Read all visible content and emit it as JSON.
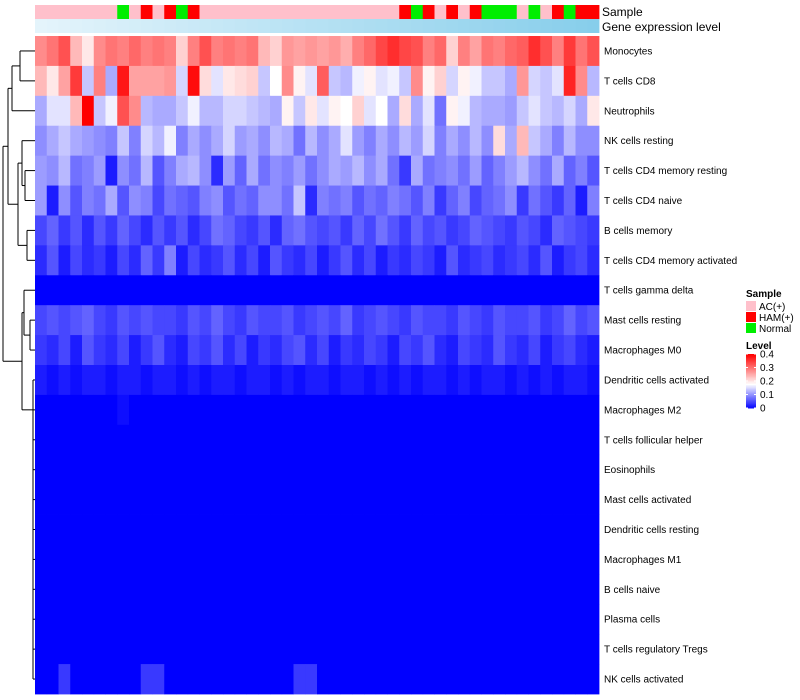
{
  "chart_data": {
    "type": "heatmap",
    "title": "",
    "annotation_tracks": [
      {
        "name": "Sample",
        "label": "Sample"
      },
      {
        "name": "Gene expression level",
        "label": "Gene expression level"
      }
    ],
    "sample_groups": [
      "AC",
      "AC",
      "AC",
      "AC",
      "AC",
      "AC",
      "AC",
      "N",
      "AC",
      "H",
      "AC",
      "H",
      "N",
      "H",
      "AC",
      "AC",
      "AC",
      "AC",
      "AC",
      "AC",
      "AC",
      "AC",
      "AC",
      "AC",
      "AC",
      "AC",
      "AC",
      "AC",
      "AC",
      "AC",
      "AC",
      "H",
      "N",
      "H",
      "AC",
      "H",
      "AC",
      "H",
      "N",
      "N",
      "N",
      "AC",
      "N",
      "AC",
      "H",
      "N",
      "H",
      "H"
    ],
    "sample_group_labels": {
      "AC": "AC(+)",
      "H": "HAM(+)",
      "N": "Normal"
    },
    "sample_group_colors": {
      "AC": "#ffc0cb",
      "H": "#ff0000",
      "N": "#00ee00"
    },
    "expression_track": {
      "low_color": "#e4f4fb",
      "high_color": "#87ceeb"
    },
    "rows": [
      "Monocytes",
      "T cells CD8",
      "Neutrophils",
      "NK cells resting",
      "T cells CD4 memory resting",
      "T cells CD4 naive",
      "B cells memory",
      "T cells CD4 memory activated",
      "T cells gamma delta",
      "Mast cells resting",
      "Macrophages M0",
      "Dendritic cells activated",
      "Macrophages M2",
      "T cells follicular helper",
      "Eosinophils",
      "Mast cells activated",
      "Dendritic cells resting",
      "Macrophages M1",
      "B cells naive",
      "Plasma cells",
      "T cells regulatory  Tregs",
      "NK cells activated"
    ],
    "values": [
      [
        0.28,
        0.3,
        0.33,
        0.24,
        0.2,
        0.28,
        0.3,
        0.29,
        0.31,
        0.29,
        0.3,
        0.29,
        0.22,
        0.29,
        0.33,
        0.29,
        0.3,
        0.29,
        0.3,
        0.24,
        0.22,
        0.27,
        0.26,
        0.27,
        0.26,
        0.27,
        0.25,
        0.29,
        0.31,
        0.34,
        0.36,
        0.34,
        0.33,
        0.29,
        0.31,
        0.22,
        0.29,
        0.26,
        0.3,
        0.29,
        0.31,
        0.32,
        0.36,
        0.33,
        0.29,
        0.35,
        0.3,
        0.33
      ],
      [
        0.24,
        0.2,
        0.26,
        0.35,
        0.14,
        0.29,
        0.12,
        0.38,
        0.26,
        0.26,
        0.26,
        0.27,
        0.15,
        0.39,
        0.21,
        0.16,
        0.2,
        0.21,
        0.22,
        0.14,
        0.18,
        0.28,
        0.19,
        0.16,
        0.32,
        0.14,
        0.13,
        0.17,
        0.19,
        0.16,
        0.17,
        0.14,
        0.28,
        0.19,
        0.22,
        0.15,
        0.19,
        0.17,
        0.14,
        0.14,
        0.12,
        0.27,
        0.15,
        0.14,
        0.16,
        0.37,
        0.28,
        0.13
      ],
      [
        0.12,
        0.16,
        0.16,
        0.24,
        0.4,
        0.14,
        0.17,
        0.33,
        0.28,
        0.13,
        0.12,
        0.12,
        0.14,
        0.17,
        0.13,
        0.13,
        0.15,
        0.15,
        0.14,
        0.13,
        0.12,
        0.19,
        0.14,
        0.2,
        0.16,
        0.19,
        0.18,
        0.22,
        0.16,
        0.18,
        0.12,
        0.21,
        0.12,
        0.16,
        0.08,
        0.19,
        0.17,
        0.13,
        0.12,
        0.12,
        0.11,
        0.14,
        0.16,
        0.14,
        0.13,
        0.15,
        0.12,
        0.2
      ],
      [
        0.1,
        0.12,
        0.14,
        0.12,
        0.11,
        0.1,
        0.09,
        0.14,
        0.09,
        0.15,
        0.13,
        0.17,
        0.09,
        0.12,
        0.1,
        0.12,
        0.15,
        0.11,
        0.12,
        0.1,
        0.13,
        0.12,
        0.08,
        0.13,
        0.1,
        0.12,
        0.16,
        0.11,
        0.09,
        0.12,
        0.1,
        0.13,
        0.11,
        0.15,
        0.09,
        0.12,
        0.1,
        0.13,
        0.1,
        0.21,
        0.12,
        0.24,
        0.14,
        0.12,
        0.09,
        0.13,
        0.1,
        0.1
      ],
      [
        0.11,
        0.1,
        0.13,
        0.08,
        0.09,
        0.11,
        0.02,
        0.1,
        0.08,
        0.13,
        0.06,
        0.09,
        0.12,
        0.13,
        0.1,
        0.03,
        0.11,
        0.07,
        0.12,
        0.08,
        0.1,
        0.09,
        0.11,
        0.08,
        0.1,
        0.12,
        0.11,
        0.13,
        0.1,
        0.12,
        0.08,
        0.04,
        0.12,
        0.08,
        0.09,
        0.1,
        0.08,
        0.11,
        0.07,
        0.09,
        0.11,
        0.13,
        0.1,
        0.08,
        0.12,
        0.07,
        0.09,
        0.06
      ],
      [
        0.11,
        0.02,
        0.1,
        0.06,
        0.09,
        0.08,
        0.12,
        0.06,
        0.1,
        0.09,
        0.05,
        0.08,
        0.07,
        0.06,
        0.09,
        0.1,
        0.06,
        0.08,
        0.07,
        0.1,
        0.1,
        0.08,
        0.14,
        0.03,
        0.09,
        0.08,
        0.09,
        0.06,
        0.08,
        0.07,
        0.09,
        0.08,
        0.06,
        0.09,
        0.04,
        0.07,
        0.09,
        0.05,
        0.07,
        0.08,
        0.1,
        0.04,
        0.08,
        0.06,
        0.04,
        0.07,
        0.02,
        0.09
      ],
      [
        0.05,
        0.07,
        0.04,
        0.06,
        0.03,
        0.06,
        0.04,
        0.07,
        0.05,
        0.03,
        0.06,
        0.04,
        0.06,
        0.03,
        0.05,
        0.08,
        0.07,
        0.05,
        0.04,
        0.06,
        0.03,
        0.07,
        0.08,
        0.06,
        0.05,
        0.06,
        0.04,
        0.07,
        0.05,
        0.08,
        0.06,
        0.04,
        0.07,
        0.05,
        0.06,
        0.04,
        0.05,
        0.07,
        0.06,
        0.05,
        0.04,
        0.06,
        0.05,
        0.03,
        0.07,
        0.06,
        0.05,
        0.04
      ],
      [
        0.03,
        0.06,
        0.02,
        0.05,
        0.03,
        0.04,
        0.02,
        0.05,
        0.03,
        0.07,
        0.04,
        0.09,
        0.02,
        0.05,
        0.03,
        0.04,
        0.06,
        0.03,
        0.05,
        0.02,
        0.06,
        0.04,
        0.03,
        0.05,
        0.02,
        0.04,
        0.06,
        0.03,
        0.05,
        0.02,
        0.04,
        0.03,
        0.05,
        0.04,
        0.02,
        0.06,
        0.03,
        0.04,
        0.05,
        0.03,
        0.04,
        0.05,
        0.03,
        0.06,
        0.02,
        0.04,
        0.05,
        0.03
      ],
      [
        0.0,
        0.0,
        0.0,
        0.0,
        0.0,
        0.0,
        0.0,
        0.0,
        0.0,
        0.0,
        0.0,
        0.0,
        0.0,
        0.0,
        0.0,
        0.0,
        0.0,
        0.0,
        0.0,
        0.0,
        0.0,
        0.0,
        0.0,
        0.0,
        0.0,
        0.0,
        0.0,
        0.0,
        0.0,
        0.0,
        0.0,
        0.0,
        0.0,
        0.0,
        0.0,
        0.0,
        0.0,
        0.0,
        0.0,
        0.0,
        0.0,
        0.0,
        0.0,
        0.0,
        0.0,
        0.0,
        0.0,
        0.0
      ],
      [
        0.05,
        0.06,
        0.05,
        0.06,
        0.07,
        0.05,
        0.04,
        0.06,
        0.05,
        0.06,
        0.05,
        0.05,
        0.04,
        0.06,
        0.05,
        0.07,
        0.05,
        0.04,
        0.06,
        0.05,
        0.05,
        0.06,
        0.04,
        0.05,
        0.06,
        0.05,
        0.07,
        0.04,
        0.05,
        0.06,
        0.05,
        0.04,
        0.06,
        0.05,
        0.05,
        0.04,
        0.06,
        0.05,
        0.04,
        0.06,
        0.05,
        0.05,
        0.06,
        0.04,
        0.05,
        0.07,
        0.05,
        0.06
      ],
      [
        0.04,
        0.03,
        0.05,
        0.02,
        0.06,
        0.04,
        0.03,
        0.05,
        0.02,
        0.04,
        0.06,
        0.03,
        0.02,
        0.05,
        0.04,
        0.06,
        0.03,
        0.05,
        0.02,
        0.04,
        0.03,
        0.05,
        0.06,
        0.03,
        0.05,
        0.02,
        0.04,
        0.03,
        0.05,
        0.04,
        0.02,
        0.05,
        0.04,
        0.06,
        0.03,
        0.02,
        0.05,
        0.04,
        0.03,
        0.06,
        0.04,
        0.03,
        0.05,
        0.02,
        0.04,
        0.05,
        0.03,
        0.02
      ],
      [
        0.02,
        0.01,
        0.02,
        0.01,
        0.02,
        0.02,
        0.01,
        0.02,
        0.02,
        0.01,
        0.02,
        0.02,
        0.01,
        0.02,
        0.01,
        0.02,
        0.02,
        0.01,
        0.02,
        0.02,
        0.01,
        0.02,
        0.01,
        0.02,
        0.02,
        0.01,
        0.02,
        0.02,
        0.01,
        0.02,
        0.01,
        0.02,
        0.01,
        0.02,
        0.02,
        0.01,
        0.02,
        0.01,
        0.02,
        0.02,
        0.01,
        0.02,
        0.01,
        0.02,
        0.01,
        0.02,
        0.02,
        0.01
      ],
      [
        0.0,
        0.0,
        0.0,
        0.0,
        0.0,
        0.0,
        0.0,
        0.01,
        0.0,
        0.0,
        0.0,
        0.0,
        0.0,
        0.0,
        0.0,
        0.0,
        0.0,
        0.0,
        0.0,
        0.0,
        0.0,
        0.0,
        0.0,
        0.0,
        0.0,
        0.0,
        0.0,
        0.0,
        0.0,
        0.0,
        0.0,
        0.0,
        0.0,
        0.0,
        0.0,
        0.0,
        0.0,
        0.0,
        0.0,
        0.0,
        0.0,
        0.0,
        0.0,
        0.0,
        0.0,
        0.0,
        0.0,
        0.0
      ],
      [
        0.0,
        0.0,
        0.0,
        0.0,
        0.0,
        0.0,
        0.0,
        0.0,
        0.0,
        0.0,
        0.0,
        0.0,
        0.0,
        0.0,
        0.0,
        0.0,
        0.0,
        0.0,
        0.0,
        0.0,
        0.0,
        0.0,
        0.0,
        0.0,
        0.0,
        0.0,
        0.0,
        0.0,
        0.0,
        0.0,
        0.0,
        0.0,
        0.0,
        0.0,
        0.0,
        0.0,
        0.0,
        0.0,
        0.0,
        0.0,
        0.0,
        0.0,
        0.0,
        0.0,
        0.0,
        0.0,
        0.0,
        0.0
      ],
      [
        0.0,
        0.0,
        0.0,
        0.0,
        0.0,
        0.0,
        0.0,
        0.0,
        0.0,
        0.0,
        0.0,
        0.0,
        0.0,
        0.0,
        0.0,
        0.0,
        0.0,
        0.0,
        0.0,
        0.0,
        0.0,
        0.0,
        0.0,
        0.0,
        0.0,
        0.0,
        0.0,
        0.0,
        0.0,
        0.0,
        0.0,
        0.0,
        0.0,
        0.0,
        0.0,
        0.0,
        0.0,
        0.0,
        0.0,
        0.0,
        0.0,
        0.0,
        0.0,
        0.0,
        0.0,
        0.0,
        0.0,
        0.0
      ],
      [
        0.0,
        0.0,
        0.0,
        0.0,
        0.0,
        0.0,
        0.0,
        0.0,
        0.0,
        0.0,
        0.0,
        0.0,
        0.0,
        0.0,
        0.0,
        0.0,
        0.0,
        0.0,
        0.0,
        0.0,
        0.0,
        0.0,
        0.0,
        0.0,
        0.0,
        0.0,
        0.0,
        0.0,
        0.0,
        0.0,
        0.0,
        0.0,
        0.0,
        0.0,
        0.0,
        0.0,
        0.0,
        0.0,
        0.0,
        0.0,
        0.0,
        0.0,
        0.0,
        0.0,
        0.0,
        0.0,
        0.0,
        0.0
      ],
      [
        0.0,
        0.0,
        0.0,
        0.0,
        0.0,
        0.0,
        0.0,
        0.0,
        0.0,
        0.0,
        0.0,
        0.0,
        0.0,
        0.0,
        0.0,
        0.0,
        0.0,
        0.0,
        0.0,
        0.0,
        0.0,
        0.0,
        0.0,
        0.0,
        0.0,
        0.0,
        0.0,
        0.0,
        0.0,
        0.0,
        0.0,
        0.0,
        0.0,
        0.0,
        0.0,
        0.0,
        0.0,
        0.0,
        0.0,
        0.0,
        0.0,
        0.0,
        0.0,
        0.0,
        0.0,
        0.0,
        0.0,
        0.0
      ],
      [
        0.0,
        0.0,
        0.0,
        0.0,
        0.0,
        0.0,
        0.0,
        0.0,
        0.0,
        0.0,
        0.0,
        0.0,
        0.0,
        0.0,
        0.0,
        0.0,
        0.0,
        0.0,
        0.0,
        0.0,
        0.0,
        0.0,
        0.0,
        0.0,
        0.0,
        0.0,
        0.0,
        0.0,
        0.0,
        0.0,
        0.0,
        0.0,
        0.0,
        0.0,
        0.0,
        0.0,
        0.0,
        0.0,
        0.0,
        0.0,
        0.0,
        0.0,
        0.0,
        0.0,
        0.0,
        0.0,
        0.0,
        0.0
      ],
      [
        0.0,
        0.0,
        0.0,
        0.0,
        0.0,
        0.0,
        0.0,
        0.0,
        0.0,
        0.0,
        0.0,
        0.0,
        0.0,
        0.0,
        0.0,
        0.0,
        0.0,
        0.0,
        0.0,
        0.0,
        0.0,
        0.0,
        0.0,
        0.0,
        0.0,
        0.0,
        0.0,
        0.0,
        0.0,
        0.0,
        0.0,
        0.0,
        0.0,
        0.0,
        0.0,
        0.0,
        0.0,
        0.0,
        0.0,
        0.0,
        0.0,
        0.0,
        0.0,
        0.0,
        0.0,
        0.0,
        0.0,
        0.0
      ],
      [
        0.0,
        0.0,
        0.0,
        0.0,
        0.0,
        0.0,
        0.0,
        0.0,
        0.0,
        0.0,
        0.0,
        0.0,
        0.0,
        0.0,
        0.0,
        0.0,
        0.0,
        0.0,
        0.0,
        0.0,
        0.0,
        0.0,
        0.0,
        0.0,
        0.0,
        0.0,
        0.0,
        0.0,
        0.0,
        0.0,
        0.0,
        0.0,
        0.0,
        0.0,
        0.0,
        0.0,
        0.0,
        0.0,
        0.0,
        0.0,
        0.0,
        0.0,
        0.0,
        0.0,
        0.0,
        0.0,
        0.0,
        0.0
      ],
      [
        0.0,
        0.0,
        0.0,
        0.0,
        0.0,
        0.0,
        0.0,
        0.0,
        0.0,
        0.0,
        0.0,
        0.0,
        0.0,
        0.0,
        0.0,
        0.0,
        0.0,
        0.0,
        0.0,
        0.0,
        0.0,
        0.0,
        0.0,
        0.0,
        0.0,
        0.0,
        0.0,
        0.0,
        0.0,
        0.0,
        0.0,
        0.0,
        0.0,
        0.0,
        0.0,
        0.0,
        0.0,
        0.0,
        0.0,
        0.0,
        0.0,
        0.0,
        0.0,
        0.0,
        0.0,
        0.0,
        0.0,
        0.0
      ],
      [
        0.0,
        0.0,
        0.04,
        0.0,
        0.0,
        0.0,
        0.0,
        0.0,
        0.0,
        0.04,
        0.04,
        0.0,
        0.0,
        0.0,
        0.0,
        0.0,
        0.0,
        0.0,
        0.0,
        0.0,
        0.0,
        0.0,
        0.04,
        0.04,
        0.0,
        0.0,
        0.0,
        0.0,
        0.0,
        0.0,
        0.0,
        0.0,
        0.0,
        0.0,
        0.0,
        0.0,
        0.0,
        0.0,
        0.0,
        0.0,
        0.0,
        0.0,
        0.0,
        0.0,
        0.0,
        0.0,
        0.0,
        0.0
      ]
    ],
    "legend": {
      "sample_title": "Sample",
      "sample_labels": [
        "AC(+)",
        "HAM(+)",
        "Normal"
      ],
      "sample_colors": [
        "#ffc0cb",
        "#ff0000",
        "#00ee00"
      ],
      "level_title": "Level",
      "level_ticks": [
        "0.4",
        "0.3",
        "0.2",
        "0.1",
        "0"
      ],
      "level_tick_values": [
        0.4,
        0.3,
        0.2,
        0.1,
        0
      ],
      "level_range": [
        0,
        0.4
      ],
      "level_colors": {
        "low": "#0000ff",
        "mid": "#ffffff",
        "high": "#ff0000",
        "mid_value": 0.18
      },
      "placement": "right"
    },
    "row_dendrogram": true,
    "xlabel": "",
    "ylabel": ""
  }
}
